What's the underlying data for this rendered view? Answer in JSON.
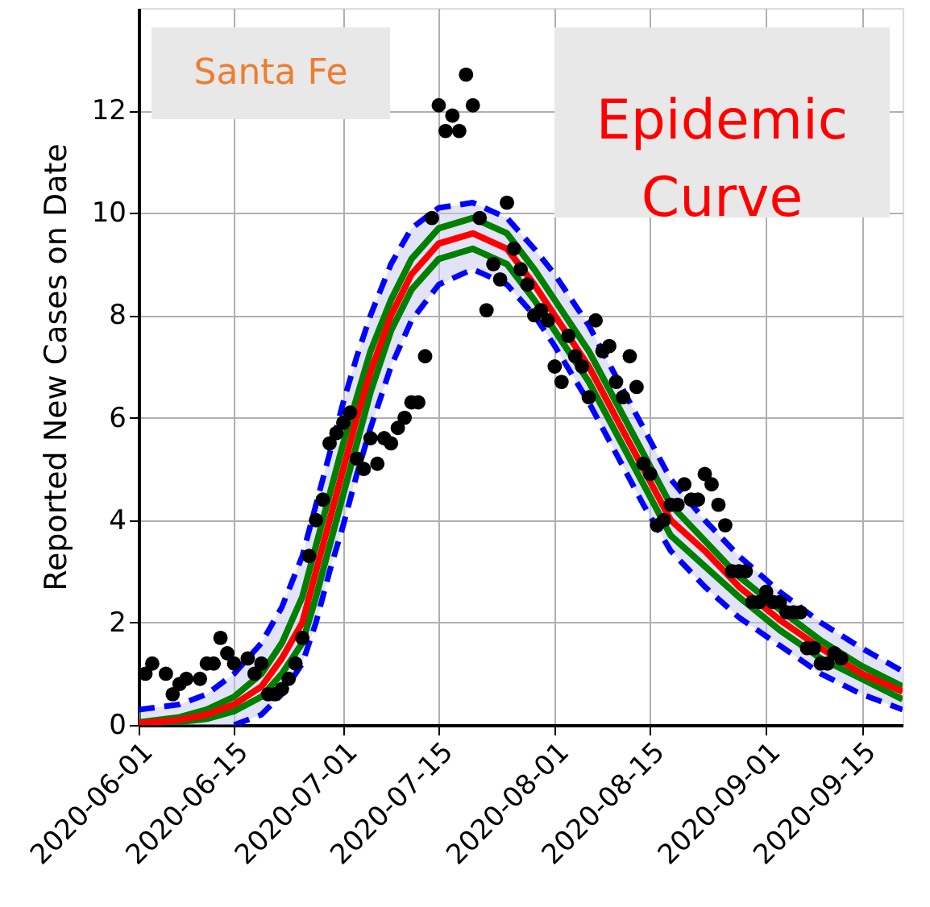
{
  "chart_data": {
    "type": "scatter",
    "ylabel": "Reported New Cases on Date",
    "annotations": [
      "Santa Fe",
      "Epidemic Curve"
    ],
    "xlim": [
      "2020-06-01",
      "2020-09-21"
    ],
    "xticks": [
      "2020-06-01",
      "2020-06-15",
      "2020-07-01",
      "2020-07-15",
      "2020-08-01",
      "2020-08-15",
      "2020-09-01",
      "2020-09-15"
    ],
    "ylim": [
      0,
      14
    ],
    "yticks": [
      0,
      2,
      4,
      6,
      8,
      10,
      12
    ],
    "grid": true,
    "series": [
      {
        "type": "line",
        "color": "#ff0000",
        "line_style": "solid",
        "x": [
          "2020-06-01",
          "2020-06-07",
          "2020-06-11",
          "2020-06-15",
          "2020-06-19",
          "2020-06-22",
          "2020-06-25",
          "2020-06-27",
          "2020-06-29",
          "2020-07-01",
          "2020-07-03",
          "2020-07-05",
          "2020-07-08",
          "2020-07-11",
          "2020-07-15",
          "2020-07-20",
          "2020-07-25",
          "2020-07-29",
          "2020-08-01",
          "2020-08-06",
          "2020-08-10",
          "2020-08-14",
          "2020-08-18",
          "2020-08-23",
          "2020-08-28",
          "2020-09-03",
          "2020-09-09",
          "2020-09-15",
          "2020-09-21"
        ],
        "values": [
          0.03,
          0.1,
          0.2,
          0.4,
          0.75,
          1.3,
          2.0,
          3.0,
          4.0,
          5.0,
          6.0,
          6.9,
          8.0,
          8.8,
          9.4,
          9.6,
          9.3,
          8.6,
          8.0,
          7.0,
          6.0,
          5.0,
          4.0,
          3.4,
          2.7,
          2.05,
          1.5,
          1.0,
          0.65
        ],
        "lower": [
          0.0,
          0.0,
          0.0,
          0.0,
          0.2,
          0.6,
          1.2,
          2.0,
          3.0,
          3.9,
          4.9,
          5.8,
          7.0,
          7.9,
          8.6,
          8.9,
          8.6,
          8.0,
          7.4,
          6.3,
          5.3,
          4.3,
          3.4,
          2.7,
          2.1,
          1.55,
          1.0,
          0.6,
          0.3
        ],
        "upper": [
          0.3,
          0.4,
          0.6,
          1.0,
          1.6,
          2.3,
          3.3,
          4.3,
          5.3,
          6.3,
          7.2,
          8.0,
          9.0,
          9.7,
          10.1,
          10.2,
          9.9,
          9.3,
          8.8,
          7.8,
          6.8,
          5.8,
          4.8,
          4.0,
          3.3,
          2.6,
          2.0,
          1.5,
          1.05
        ]
      },
      {
        "type": "line",
        "color": "#008000",
        "line_style": "solid",
        "x": [
          "2020-06-01",
          "2020-06-07",
          "2020-06-11",
          "2020-06-15",
          "2020-06-19",
          "2020-06-22",
          "2020-06-25",
          "2020-06-27",
          "2020-06-29",
          "2020-07-01",
          "2020-07-03",
          "2020-07-05",
          "2020-07-08",
          "2020-07-11",
          "2020-07-15",
          "2020-07-20",
          "2020-07-25",
          "2020-07-29",
          "2020-08-01",
          "2020-08-06",
          "2020-08-10",
          "2020-08-14",
          "2020-08-18",
          "2020-08-23",
          "2020-08-28",
          "2020-09-03",
          "2020-09-09",
          "2020-09-15",
          "2020-09-21"
        ],
        "values": [
          0.05,
          0.15,
          0.3,
          0.55,
          1.0,
          1.6,
          2.5,
          3.5,
          4.5,
          5.5,
          6.4,
          7.3,
          8.3,
          9.1,
          9.7,
          9.9,
          9.6,
          8.9,
          8.3,
          7.3,
          6.3,
          5.3,
          4.3,
          3.6,
          2.9,
          2.25,
          1.65,
          1.15,
          0.75
        ]
      },
      {
        "type": "line",
        "color": "#008000",
        "line_style": "solid",
        "x": [
          "2020-06-01",
          "2020-06-07",
          "2020-06-11",
          "2020-06-15",
          "2020-06-19",
          "2020-06-22",
          "2020-06-25",
          "2020-06-27",
          "2020-06-29",
          "2020-07-01",
          "2020-07-03",
          "2020-07-05",
          "2020-07-08",
          "2020-07-11",
          "2020-07-15",
          "2020-07-20",
          "2020-07-25",
          "2020-07-29",
          "2020-08-01",
          "2020-08-06",
          "2020-08-10",
          "2020-08-14",
          "2020-08-18",
          "2020-08-23",
          "2020-08-28",
          "2020-09-03",
          "2020-09-09",
          "2020-09-15",
          "2020-09-21"
        ],
        "values": [
          0.01,
          0.06,
          0.12,
          0.27,
          0.55,
          1.0,
          1.6,
          2.5,
          3.5,
          4.5,
          5.5,
          6.5,
          7.7,
          8.5,
          9.1,
          9.3,
          9.0,
          8.3,
          7.7,
          6.7,
          5.7,
          4.7,
          3.7,
          3.1,
          2.5,
          1.85,
          1.3,
          0.9,
          0.5
        ]
      },
      {
        "type": "line",
        "color": "#0000ff",
        "line_style": "dashed",
        "x": [
          "2020-06-01",
          "2020-06-07",
          "2020-06-11",
          "2020-06-15",
          "2020-06-19",
          "2020-06-22",
          "2020-06-25",
          "2020-06-27",
          "2020-06-29",
          "2020-07-01",
          "2020-07-03",
          "2020-07-05",
          "2020-07-08",
          "2020-07-11",
          "2020-07-15",
          "2020-07-20",
          "2020-07-25",
          "2020-07-29",
          "2020-08-01",
          "2020-08-06",
          "2020-08-10",
          "2020-08-14",
          "2020-08-18",
          "2020-08-23",
          "2020-08-28",
          "2020-09-03",
          "2020-09-09",
          "2020-09-15",
          "2020-09-21"
        ],
        "values": [
          0.3,
          0.4,
          0.6,
          1.0,
          1.6,
          2.3,
          3.3,
          4.3,
          5.3,
          6.3,
          7.2,
          8.0,
          9.0,
          9.7,
          10.1,
          10.2,
          9.9,
          9.3,
          8.8,
          7.8,
          6.8,
          5.8,
          4.8,
          4.0,
          3.3,
          2.6,
          2.0,
          1.5,
          1.05
        ]
      },
      {
        "type": "line",
        "color": "#0000ff",
        "line_style": "dashed",
        "x": [
          "2020-06-15",
          "2020-06-19",
          "2020-06-22",
          "2020-06-25",
          "2020-06-27",
          "2020-06-29",
          "2020-07-01",
          "2020-07-03",
          "2020-07-05",
          "2020-07-08",
          "2020-07-11",
          "2020-07-15",
          "2020-07-20",
          "2020-07-25",
          "2020-07-29",
          "2020-08-01",
          "2020-08-06",
          "2020-08-10",
          "2020-08-14",
          "2020-08-18",
          "2020-08-23",
          "2020-08-28",
          "2020-09-03",
          "2020-09-09",
          "2020-09-15",
          "2020-09-21"
        ],
        "values": [
          0.0,
          0.2,
          0.6,
          1.2,
          2.0,
          3.0,
          3.9,
          4.9,
          5.8,
          7.0,
          7.9,
          8.6,
          8.9,
          8.6,
          8.0,
          7.4,
          6.3,
          5.3,
          4.3,
          3.4,
          2.7,
          2.1,
          1.55,
          1.0,
          0.6,
          0.3
        ]
      },
      {
        "color": "#000000",
        "marker": "circle",
        "x": [
          "2020-06-02",
          "2020-06-03",
          "2020-06-05",
          "2020-06-06",
          "2020-06-07",
          "2020-06-08",
          "2020-06-10",
          "2020-06-11",
          "2020-06-12",
          "2020-06-13",
          "2020-06-14",
          "2020-06-15",
          "2020-06-17",
          "2020-06-18",
          "2020-06-19",
          "2020-06-20",
          "2020-06-21",
          "2020-06-22",
          "2020-06-23",
          "2020-06-24",
          "2020-06-25",
          "2020-06-26",
          "2020-06-27",
          "2020-06-28",
          "2020-06-29",
          "2020-06-30",
          "2020-07-01",
          "2020-07-02",
          "2020-07-03",
          "2020-07-04",
          "2020-07-05",
          "2020-07-06",
          "2020-07-07",
          "2020-07-08",
          "2020-07-09",
          "2020-07-10",
          "2020-07-11",
          "2020-07-12",
          "2020-07-13",
          "2020-07-14",
          "2020-07-15",
          "2020-07-16",
          "2020-07-17",
          "2020-07-18",
          "2020-07-19",
          "2020-07-20",
          "2020-07-21",
          "2020-07-22",
          "2020-07-23",
          "2020-07-24",
          "2020-07-25",
          "2020-07-26",
          "2020-07-27",
          "2020-07-28",
          "2020-07-29",
          "2020-07-30",
          "2020-07-31",
          "2020-08-01",
          "2020-08-02",
          "2020-08-03",
          "2020-08-04",
          "2020-08-05",
          "2020-08-06",
          "2020-08-07",
          "2020-08-08",
          "2020-08-09",
          "2020-08-10",
          "2020-08-11",
          "2020-08-12",
          "2020-08-13",
          "2020-08-14",
          "2020-08-15",
          "2020-08-16",
          "2020-08-17",
          "2020-08-18",
          "2020-08-19",
          "2020-08-20",
          "2020-08-21",
          "2020-08-22",
          "2020-08-23",
          "2020-08-24",
          "2020-08-25",
          "2020-08-26",
          "2020-08-27",
          "2020-08-28",
          "2020-08-29",
          "2020-08-30",
          "2020-08-31",
          "2020-09-01",
          "2020-09-02",
          "2020-09-03",
          "2020-09-04",
          "2020-09-05",
          "2020-09-06",
          "2020-09-07",
          "2020-09-08",
          "2020-09-09",
          "2020-09-10",
          "2020-09-11",
          "2020-09-12"
        ],
        "values": [
          1.0,
          1.2,
          1.0,
          0.6,
          0.8,
          0.9,
          0.9,
          1.2,
          1.2,
          1.7,
          1.4,
          1.2,
          1.3,
          1.0,
          1.2,
          0.6,
          0.6,
          0.7,
          0.9,
          1.2,
          1.7,
          3.3,
          4.0,
          4.4,
          5.5,
          5.7,
          5.9,
          6.1,
          5.2,
          5.0,
          5.6,
          5.1,
          5.6,
          5.5,
          5.8,
          6.0,
          6.3,
          6.3,
          7.2,
          9.9,
          12.1,
          11.6,
          11.9,
          11.6,
          12.7,
          12.1,
          9.9,
          8.1,
          9.0,
          8.7,
          10.2,
          9.3,
          8.9,
          8.6,
          8.0,
          8.1,
          7.9,
          7.0,
          6.7,
          7.6,
          7.2,
          7.0,
          6.4,
          7.9,
          7.3,
          7.4,
          6.7,
          6.4,
          7.2,
          6.6,
          5.1,
          4.9,
          3.9,
          4.0,
          4.3,
          4.3,
          4.7,
          4.4,
          4.4,
          4.9,
          4.7,
          4.3,
          3.9,
          3.0,
          3.0,
          3.0,
          2.4,
          2.4,
          2.6,
          2.4,
          2.4,
          2.2,
          2.2,
          2.2,
          1.5,
          1.5,
          1.2,
          1.2,
          1.4,
          1.3
        ]
      }
    ]
  }
}
